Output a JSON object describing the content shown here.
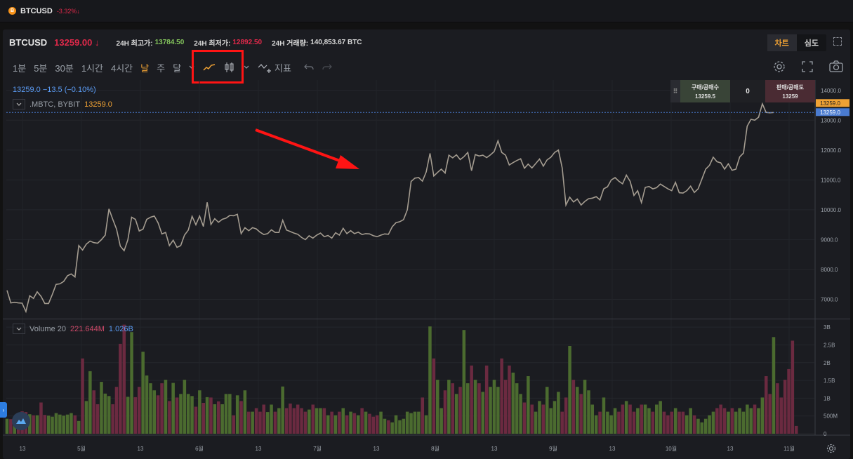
{
  "topbar": {
    "symbol": "BTCUSD",
    "change": "-3.32%↓",
    "coin_glyph": "B"
  },
  "header": {
    "symbol": "BTCUSD",
    "price": "13259.00 ↓",
    "high_label": "24H 최고가:",
    "high_value": "13784.50",
    "low_label": "24H 최저가:",
    "low_value": "12892.50",
    "volume_label": "24H 거래량:",
    "volume_value": "140,853.67 BTC",
    "view_chart": "차트",
    "view_depth": "심도"
  },
  "toolbar": {
    "timeframes": [
      "1분",
      "5분",
      "30분",
      "1시간",
      "4시간",
      "날",
      "주",
      "달"
    ],
    "active_timeframe": "날",
    "indicator_label": "지표"
  },
  "legend": {
    "price_line": "13259.0  −13.5 (−0.10%)",
    "source": ".MBTC, BYBIT",
    "source_price": "13259.0",
    "volume_title": "Volume 20",
    "volume_value_1": "221.644M",
    "volume_value_2": "1.026B"
  },
  "trade_box": {
    "handle": "⠿",
    "buy_label": "구매/공매수",
    "buy_price": "13259.5",
    "spread": "0",
    "sell_label": "판매/공매도",
    "sell_price": "13259"
  },
  "colors": {
    "price_line": "#a49c90",
    "volume_up": "#4b6b2f",
    "volume_down": "#6b2a40",
    "accent": "#f0a234",
    "highlight": "#ff1414",
    "arrow": "#ff1414"
  },
  "icons": {
    "line_chart": "line-chart-icon",
    "candle_chart": "candle-chart-icon",
    "settings": "gear-icon",
    "fullscreen": "fullscreen-icon",
    "camera": "camera-icon",
    "undo": "undo-icon",
    "redo": "redo-icon"
  },
  "chart_data": [
    {
      "type": "line",
      "title": "",
      "series": [
        {
          "values": [
            7300,
            6880,
            6900,
            6880,
            6870,
            6590,
            7120,
            7030,
            7250,
            7100,
            6860,
            6860,
            7170,
            7500,
            7520,
            7600,
            7790,
            7850,
            7750,
            8800,
            8650,
            8850,
            8950,
            8900,
            8880,
            9000,
            9150,
            10030,
            9680,
            9350,
            8780,
            8630,
            8990,
            9750,
            9680,
            9290,
            9350,
            9680,
            9750,
            9790,
            9560,
            9190,
            9240,
            8800,
            8980,
            8740,
            8800,
            9150,
            9320,
            9780,
            9500,
            9790,
            9440,
            10250,
            9510,
            9700,
            9580,
            9680,
            9720,
            9810,
            9800,
            9850,
            9200,
            9400,
            9300,
            9400,
            9360,
            9250,
            9170,
            9200,
            9330,
            9240,
            9240,
            9650,
            9320,
            9270,
            9220,
            9180,
            9070,
            9000,
            9130,
            9050,
            9150,
            9220,
            9100,
            9140,
            9050,
            9230,
            9150,
            9380,
            9200,
            9300,
            9200,
            9250,
            9170,
            9200,
            9190,
            9130,
            9100,
            9150,
            9190,
            9180,
            9430,
            9570,
            9600,
            9670,
            10000,
            10950,
            11060,
            11080,
            10960,
            11270,
            11890,
            11130,
            11250,
            11360,
            11230,
            11830,
            11740,
            11840,
            11680,
            11780,
            11920,
            11310,
            11850,
            11800,
            11830,
            11750,
            11840,
            11950,
            12310,
            11920,
            11830,
            11500,
            11580,
            11650,
            11710,
            11390,
            11530,
            11400,
            11550,
            11700,
            11460,
            11670,
            11760,
            11920,
            12000,
            11400,
            10160,
            10420,
            10260,
            10360,
            10160,
            10280,
            10370,
            10390,
            10440,
            10330,
            10700,
            10770,
            11000,
            11080,
            10960,
            10870,
            11160,
            10950,
            10480,
            10640,
            10240,
            10750,
            10780,
            10700,
            10740,
            10860,
            10780,
            10700,
            10640,
            10920,
            10570,
            10560,
            10640,
            10790,
            10580,
            10700,
            11030,
            11360,
            11490,
            11760,
            11610,
            11570,
            11360,
            11540,
            11320,
            11360,
            11770,
            11900,
            12800,
            13030,
            13000,
            13100,
            13550,
            13260,
            13250,
            13259
          ]
        }
      ],
      "ylim": [
        6400,
        14300
      ],
      "y_ticks": [
        "14000.0",
        "13000.0",
        "12000.0",
        "11000.0",
        "10000.0",
        "9000.0",
        "8000.0",
        "7000.0"
      ],
      "last_price_label": "13259.0",
      "ask_price_label": "13259.0",
      "x_ticks": [
        "13",
        "5월",
        "13",
        "6월",
        "13",
        "7월",
        "13",
        "8월",
        "13",
        "9월",
        "13",
        "10월",
        "13",
        "11월"
      ],
      "grid": true
    },
    {
      "type": "bar",
      "title": "Volume 20",
      "ylim": [
        0,
        3200000000
      ],
      "y_ticks": [
        "3B",
        "2.5B",
        "2B",
        "1.5B",
        "1B",
        "500M",
        "0"
      ],
      "series": [
        {
          "name": "Volume 20",
          "values": [
            0.42,
            0.41,
            0.43,
            0.55,
            0.63,
            0.61,
            0.55,
            0.52,
            0.52,
            0.88,
            0.53,
            0.51,
            0.48,
            0.58,
            0.54,
            0.51,
            0.54,
            0.58,
            0.52,
            0.36,
            2.12,
            0.92,
            1.76,
            1.22,
            0.83,
            1.46,
            1.13,
            1.06,
            0.83,
            1.32,
            2.53,
            3.07,
            1.04,
            2.86,
            1.03,
            1.32,
            2.31,
            1.64,
            1.42,
            1.22,
            1.08,
            1.42,
            1.52,
            0.92,
            1.43,
            1.02,
            1.12,
            1.52,
            1.12,
            1.06,
            0.76,
            1.22,
            0.87,
            1.03,
            1.02,
            0.83,
            0.91,
            0.83,
            1.12,
            1.12,
            0.52,
            1.08,
            0.92,
            1.22,
            0.62,
            0.62,
            0.72,
            0.62,
            0.82,
            0.61,
            0.82,
            0.62,
            0.72,
            1.33,
            0.72,
            0.85,
            0.72,
            0.82,
            0.72,
            0.62,
            0.68,
            0.82,
            0.72,
            0.72,
            0.72,
            0.52,
            0.62,
            0.52,
            0.62,
            0.72,
            0.52,
            0.62,
            0.58,
            0.52,
            0.72,
            0.62,
            0.56,
            0.48,
            0.52,
            0.62,
            0.42,
            0.38,
            0.32,
            0.52,
            0.38,
            0.42,
            0.62,
            0.58,
            0.62,
            0.62,
            1.02,
            0.52,
            3.02,
            2.12,
            1.52,
            0.72,
            1.22,
            1.52,
            1.42,
            1.12,
            1.32,
            2.92,
            1.42,
            1.92,
            1.52,
            1.42,
            1.18,
            1.92,
            1.32,
            1.52,
            1.32,
            2.12,
            1.52,
            1.92,
            1.72,
            1.42,
            1.12,
            0.88,
            1.62,
            0.82,
            0.62,
            0.92,
            0.82,
            1.32,
            0.72,
            0.92,
            1.18,
            0.62,
            1.02,
            2.47,
            1.52,
            1.32,
            1.12,
            1.52,
            1.22,
            0.82,
            0.52,
            0.62,
            1.02,
            0.62,
            0.52,
            0.72,
            0.62,
            0.82,
            0.92,
            0.82,
            0.62,
            0.72,
            0.82,
            0.82,
            0.72,
            0.62,
            0.82,
            0.92,
            0.62,
            0.52,
            0.62,
            0.72,
            0.62,
            0.62,
            0.52,
            0.72,
            0.52,
            0.42,
            0.32,
            0.42,
            0.52,
            0.62,
            0.72,
            0.82,
            0.72,
            0.62,
            0.72,
            0.62,
            0.72,
            0.62,
            0.82,
            0.72,
            0.82,
            0.72,
            1.02,
            1.62,
            1.12,
            2.72,
            1.42,
            1.02,
            1.52,
            1.82,
            2.62,
            0.22
          ]
        }
      ],
      "up_days_hint": "volume bars colored green or red by price direction"
    }
  ]
}
